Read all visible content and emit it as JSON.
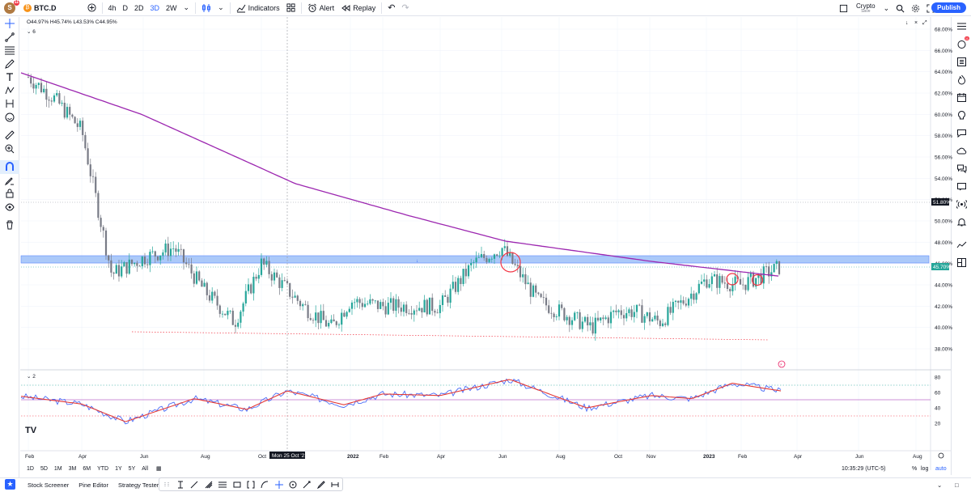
{
  "topbar": {
    "avatar_letter": "S",
    "notification_count": "11",
    "symbol": "BTC.D",
    "intervals": [
      "4h",
      "D",
      "2D",
      "3D",
      "2W"
    ],
    "active_interval": "3D",
    "indicators_label": "Indicators",
    "alert_label": "Alert",
    "replay_label": "Replay",
    "layout_name": "Crypto",
    "layout_status": "Save",
    "publish_label": "Publish"
  },
  "legend": {
    "ohlc": "O44.97% H45.74% L43.53% C44.95%",
    "ma_collapsed": "6",
    "rsi_collapsed": "2"
  },
  "price_axis": {
    "ticks": [
      "68.00%",
      "66.00%",
      "64.00%",
      "62.00%",
      "60.00%",
      "58.00%",
      "56.00%",
      "54.00%",
      "52.00%",
      "50.00%",
      "48.00%",
      "46.00%",
      "44.00%",
      "42.00%",
      "40.00%",
      "38.00%"
    ],
    "badge_51": "51.80%",
    "badge_current": "45.70%"
  },
  "rsi_axis": {
    "ticks": [
      "80",
      "60",
      "40",
      "20"
    ]
  },
  "time_axis": {
    "labels": [
      "Feb",
      "Apr",
      "Jun",
      "Aug",
      "Oct",
      "2022",
      "Feb",
      "Apr",
      "Jun",
      "Aug",
      "Oct",
      "Nov",
      "2023",
      "Feb",
      "Apr",
      "Jun",
      "Aug"
    ],
    "crosshair_label": "Mon 25 Oct '21"
  },
  "bottombar": {
    "ranges": [
      "1D",
      "5D",
      "1M",
      "3M",
      "6M",
      "YTD",
      "1Y",
      "5Y",
      "All"
    ],
    "clock": "10:35:29 (UTC-5)",
    "percent": "%",
    "log": "log",
    "auto": "auto"
  },
  "panelbar": {
    "tabs": [
      "Stock Screener",
      "Pine Editor",
      "Strategy Tester"
    ]
  },
  "colors": {
    "accent": "#2962ff",
    "up": "#26a69a",
    "down": "#787b86",
    "ma": "#9c27b0",
    "rsi_fast": "#4a6cf7",
    "rsi_slow": "#e53935",
    "zone": "#90b8f8"
  },
  "chart_data": {
    "type": "candlestick",
    "title": "BTC.D",
    "ylim": [
      37,
      69
    ],
    "price_series_approx": [
      {
        "t": "Feb 2021",
        "v": 63.5
      },
      {
        "t": "Mar 2021",
        "v": 61.5
      },
      {
        "t": "Apr 2021",
        "v": 58.5
      },
      {
        "t": "May 2021",
        "v": 45.0
      },
      {
        "t": "Jun 2021",
        "v": 46.5
      },
      {
        "t": "Jul 2021",
        "v": 47.5
      },
      {
        "t": "Aug 2021",
        "v": 43.5
      },
      {
        "t": "Sep 2021",
        "v": 40.5
      },
      {
        "t": "Oct 2021",
        "v": 46.0
      },
      {
        "t": "Nov 2021",
        "v": 42.0
      },
      {
        "t": "Dec 2021",
        "v": 40.0
      },
      {
        "t": "Jan 2022",
        "v": 42.5
      },
      {
        "t": "Feb 2022",
        "v": 42.0
      },
      {
        "t": "Apr 2022",
        "v": 42.0
      },
      {
        "t": "May 2022",
        "v": 46.0
      },
      {
        "t": "Jun 2022",
        "v": 47.5
      },
      {
        "t": "Jul 2022",
        "v": 42.5
      },
      {
        "t": "Aug 2022",
        "v": 40.0
      },
      {
        "t": "Sep 2022",
        "v": 41.5
      },
      {
        "t": "Oct 2022",
        "v": 41.5
      },
      {
        "t": "Nov 2022",
        "v": 40.5
      },
      {
        "t": "Dec 2022",
        "v": 42.5
      },
      {
        "t": "Jan 2023",
        "v": 44.5
      },
      {
        "t": "Feb 2023",
        "v": 44.0
      },
      {
        "t": "Mar 2023",
        "v": 45.7
      }
    ],
    "moving_average_approx": [
      {
        "t": "Feb 2021",
        "v": 63.9
      },
      {
        "t": "Jun 2021",
        "v": 60.0
      },
      {
        "t": "Oct 2021",
        "v": 53.5
      },
      {
        "t": "Feb 2022",
        "v": 50.5
      },
      {
        "t": "Jun 2022",
        "v": 48.1
      },
      {
        "t": "Oct 2022",
        "v": 46.2
      },
      {
        "t": "Mar 2023",
        "v": 44.8
      }
    ],
    "resistance_zone": [
      48.1,
      48.8
    ],
    "rsi": {
      "levels": [
        70,
        50,
        30
      ],
      "ylim": [
        10,
        85
      ],
      "approx": [
        {
          "t": "Feb 2021",
          "v": 55
        },
        {
          "t": "Apr 2021",
          "v": 45
        },
        {
          "t": "May 2021",
          "v": 22
        },
        {
          "t": "Jul 2021",
          "v": 52
        },
        {
          "t": "Sep 2021",
          "v": 38
        },
        {
          "t": "Oct 2021",
          "v": 62
        },
        {
          "t": "Dec 2021",
          "v": 44
        },
        {
          "t": "Feb 2022",
          "v": 58
        },
        {
          "t": "Apr 2022",
          "v": 56
        },
        {
          "t": "Jun 2022",
          "v": 77
        },
        {
          "t": "Aug 2022",
          "v": 40
        },
        {
          "t": "Oct 2022",
          "v": 56
        },
        {
          "t": "Dec 2022",
          "v": 52
        },
        {
          "t": "Jan 2023",
          "v": 72
        },
        {
          "t": "Mar 2023",
          "v": 62
        }
      ]
    }
  }
}
